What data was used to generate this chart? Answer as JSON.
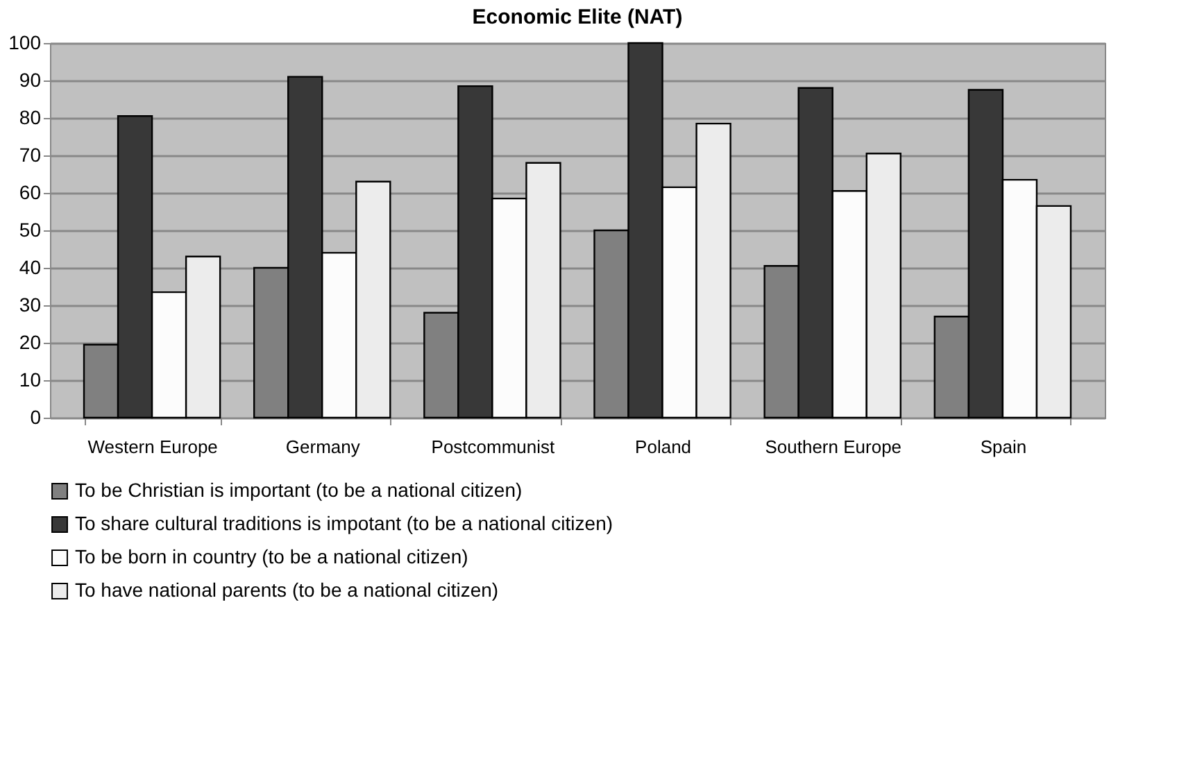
{
  "chart_data": {
    "type": "bar",
    "title": "Economic Elite (NAT)",
    "categories": [
      "Western Europe",
      "Germany",
      "Postcommunist",
      "Poland",
      "Southern Europe",
      "Spain"
    ],
    "series": [
      {
        "name": "To be Christian is important (to be a national citizen)",
        "color": "#808080",
        "values": [
          19.5,
          40,
          28,
          50,
          40.5,
          27
        ]
      },
      {
        "name": "To share cultural traditions is impotant (to be a national citizen)",
        "color": "#383838",
        "values": [
          80.5,
          91,
          88.5,
          100,
          88,
          87.5
        ]
      },
      {
        "name": "To be born in country (to be a national citizen)",
        "color": "#fcfcfc",
        "values": [
          33.5,
          44,
          58.5,
          61.5,
          60.5,
          63.5
        ]
      },
      {
        "name": "To have national parents (to be a national citizen)",
        "color": "#ececec",
        "values": [
          43,
          63,
          68,
          78.5,
          70.5,
          56.5
        ]
      }
    ],
    "ylim": [
      0,
      100
    ],
    "yticks": [
      0,
      10,
      20,
      30,
      40,
      50,
      60,
      70,
      80,
      90,
      100
    ],
    "grid": "y",
    "legend": "bottom"
  }
}
